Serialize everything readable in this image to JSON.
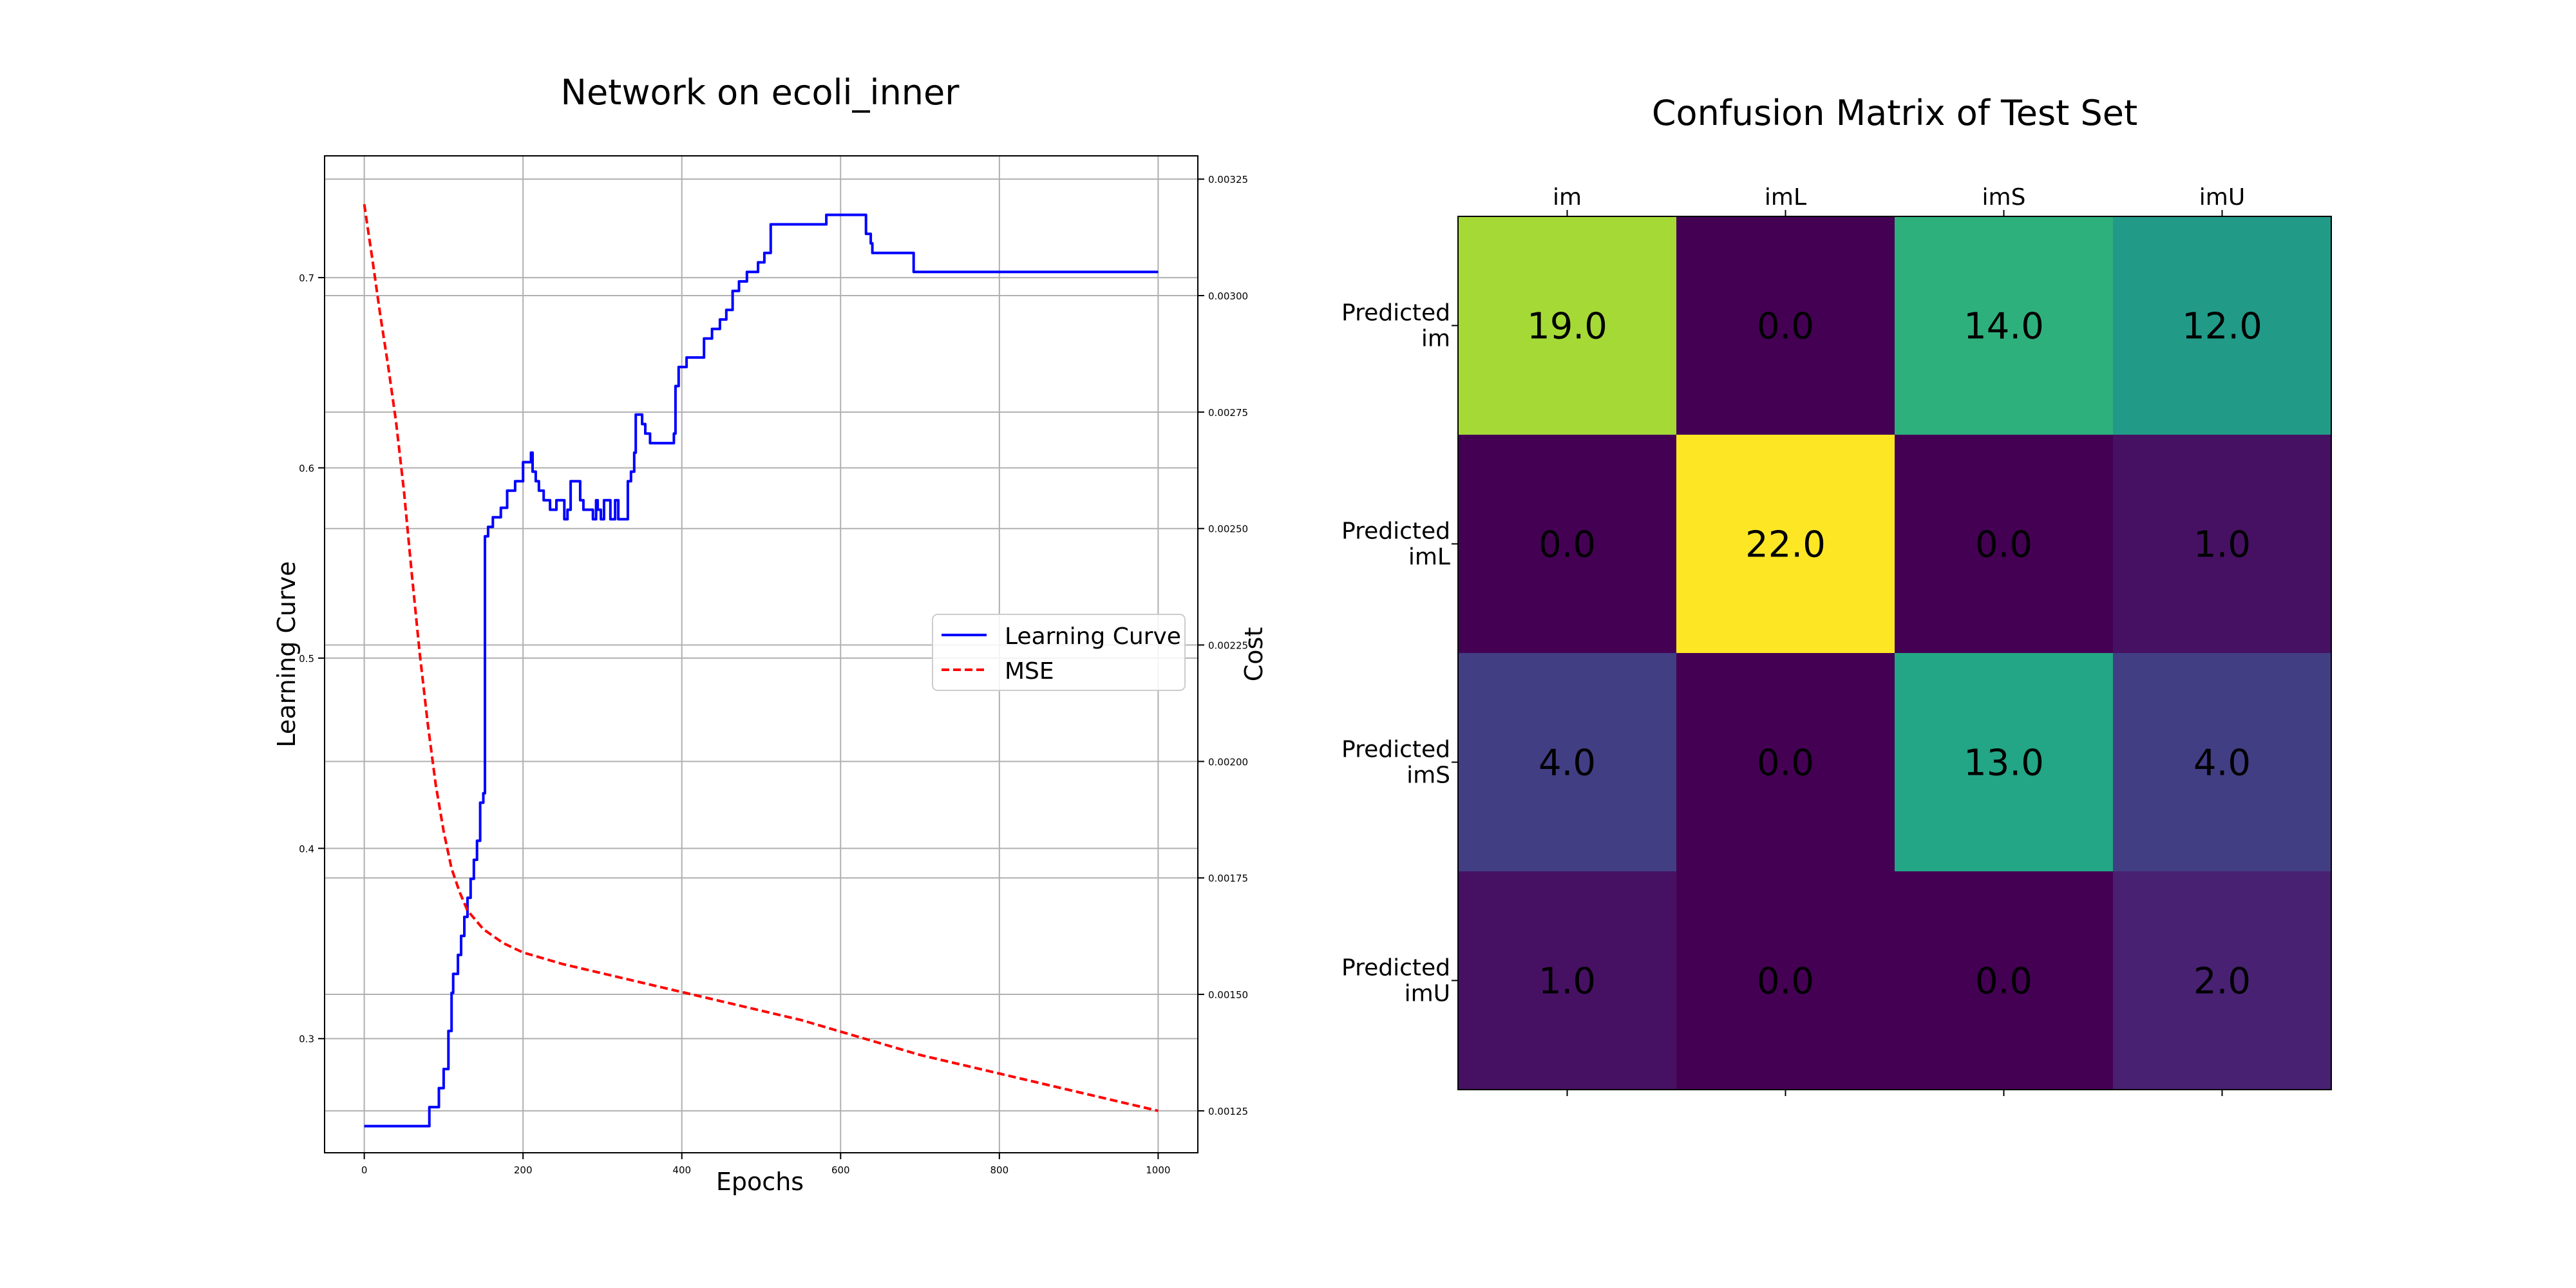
{
  "chart_data": [
    {
      "type": "line",
      "title": "Network on ecoli_inner",
      "xlabel": "Epochs",
      "ylabel": "Learning Curve",
      "y2label": "Cost",
      "xlim": [
        -50,
        1050
      ],
      "ylim": [
        0.24,
        0.764
      ],
      "y2lim": [
        0.00116,
        0.0033
      ],
      "xticks": [
        "0",
        "200",
        "400",
        "600",
        "800",
        "1000"
      ],
      "yticks": [
        "0.3",
        "0.4",
        "0.5",
        "0.6",
        "0.7"
      ],
      "y2ticks": [
        "0.00125",
        "0.00150",
        "0.00175",
        "0.00200",
        "0.00225",
        "0.00250",
        "0.00275",
        "0.00300",
        "0.00325"
      ],
      "grid": true,
      "legend_position": "center-right",
      "series": [
        {
          "name": "Learning Curve",
          "axis": "left",
          "color": "#0000ff",
          "style": "solid",
          "step": true,
          "points": [
            [
              0,
              0.254
            ],
            [
              80,
              0.254
            ],
            [
              82,
              0.264
            ],
            [
              92,
              0.264
            ],
            [
              94,
              0.274
            ],
            [
              98,
              0.274
            ],
            [
              100,
              0.284
            ],
            [
              104,
              0.284
            ],
            [
              106,
              0.304
            ],
            [
              110,
              0.324
            ],
            [
              112,
              0.334
            ],
            [
              116,
              0.334
            ],
            [
              118,
              0.344
            ],
            [
              122,
              0.354
            ],
            [
              126,
              0.364
            ],
            [
              130,
              0.374
            ],
            [
              134,
              0.384
            ],
            [
              138,
              0.394
            ],
            [
              142,
              0.404
            ],
            [
              146,
              0.424
            ],
            [
              150,
              0.429
            ],
            [
              152,
              0.564
            ],
            [
              156,
              0.569
            ],
            [
              160,
              0.569
            ],
            [
              162,
              0.574
            ],
            [
              170,
              0.574
            ],
            [
              172,
              0.579
            ],
            [
              178,
              0.579
            ],
            [
              180,
              0.588
            ],
            [
              188,
              0.588
            ],
            [
              190,
              0.593
            ],
            [
              198,
              0.593
            ],
            [
              200,
              0.603
            ],
            [
              208,
              0.603
            ],
            [
              210,
              0.608
            ],
            [
              212,
              0.598
            ],
            [
              216,
              0.593
            ],
            [
              220,
              0.588
            ],
            [
              226,
              0.583
            ],
            [
              232,
              0.583
            ],
            [
              234,
              0.578
            ],
            [
              240,
              0.578
            ],
            [
              242,
              0.583
            ],
            [
              250,
              0.583
            ],
            [
              252,
              0.573
            ],
            [
              256,
              0.578
            ],
            [
              260,
              0.593
            ],
            [
              270,
              0.593
            ],
            [
              272,
              0.583
            ],
            [
              276,
              0.578
            ],
            [
              284,
              0.578
            ],
            [
              288,
              0.573
            ],
            [
              292,
              0.583
            ],
            [
              294,
              0.578
            ],
            [
              298,
              0.573
            ],
            [
              302,
              0.583
            ],
            [
              306,
              0.583
            ],
            [
              310,
              0.573
            ],
            [
              316,
              0.583
            ],
            [
              320,
              0.573
            ],
            [
              328,
              0.573
            ],
            [
              332,
              0.593
            ],
            [
              336,
              0.598
            ],
            [
              340,
              0.608
            ],
            [
              342,
              0.628
            ],
            [
              346,
              0.628
            ],
            [
              350,
              0.623
            ],
            [
              354,
              0.618
            ],
            [
              358,
              0.618
            ],
            [
              360,
              0.613
            ],
            [
              386,
              0.613
            ],
            [
              390,
              0.618
            ],
            [
              392,
              0.643
            ],
            [
              396,
              0.653
            ],
            [
              404,
              0.653
            ],
            [
              406,
              0.658
            ],
            [
              426,
              0.658
            ],
            [
              428,
              0.668
            ],
            [
              436,
              0.668
            ],
            [
              438,
              0.673
            ],
            [
              446,
              0.673
            ],
            [
              448,
              0.678
            ],
            [
              454,
              0.678
            ],
            [
              456,
              0.683
            ],
            [
              462,
              0.683
            ],
            [
              464,
              0.693
            ],
            [
              470,
              0.693
            ],
            [
              472,
              0.698
            ],
            [
              480,
              0.698
            ],
            [
              482,
              0.703
            ],
            [
              494,
              0.703
            ],
            [
              496,
              0.708
            ],
            [
              502,
              0.708
            ],
            [
              504,
              0.713
            ],
            [
              510,
              0.713
            ],
            [
              512,
              0.728
            ],
            [
              580,
              0.728
            ],
            [
              582,
              0.733
            ],
            [
              630,
              0.733
            ],
            [
              632,
              0.723
            ],
            [
              638,
              0.718
            ],
            [
              640,
              0.713
            ],
            [
              690,
              0.713
            ],
            [
              692,
              0.703
            ],
            [
              1000,
              0.703
            ]
          ]
        },
        {
          "name": "MSE",
          "axis": "right",
          "color": "#ff0000",
          "style": "dashed",
          "points": [
            [
              0,
              0.003196
            ],
            [
              10,
              0.00308
            ],
            [
              20,
              0.00296
            ],
            [
              30,
              0.00285
            ],
            [
              40,
              0.00273
            ],
            [
              50,
              0.00258
            ],
            [
              60,
              0.0024
            ],
            [
              70,
              0.00223
            ],
            [
              80,
              0.00208
            ],
            [
              90,
              0.00195
            ],
            [
              100,
              0.00185
            ],
            [
              110,
              0.00177
            ],
            [
              120,
              0.00172
            ],
            [
              130,
              0.00168
            ],
            [
              140,
              0.00166
            ],
            [
              150,
              0.00164
            ],
            [
              175,
              0.00161
            ],
            [
              200,
              0.00159
            ],
            [
              250,
              0.001565
            ],
            [
              300,
              0.001545
            ],
            [
              350,
              0.001525
            ],
            [
              400,
              0.001505
            ],
            [
              450,
              0.001485
            ],
            [
              500,
              0.001465
            ],
            [
              550,
              0.001445
            ],
            [
              600,
              0.00142
            ],
            [
              650,
              0.001395
            ],
            [
              700,
              0.00137
            ],
            [
              750,
              0.00135
            ],
            [
              800,
              0.00133
            ],
            [
              850,
              0.00131
            ],
            [
              900,
              0.00129
            ],
            [
              950,
              0.00127
            ],
            [
              1000,
              0.00125
            ]
          ]
        }
      ]
    },
    {
      "type": "heatmap",
      "title": "Confusion Matrix of Test Set",
      "colormap": "viridis",
      "vmin": 0,
      "vmax": 22,
      "x_categories": [
        "im",
        "imL",
        "imS",
        "imU"
      ],
      "y_categories": [
        [
          "Predicted",
          "im"
        ],
        [
          "Predicted",
          "imL"
        ],
        [
          "Predicted",
          "imS"
        ],
        [
          "Predicted",
          "imU"
        ]
      ],
      "values": [
        [
          "19.0",
          "0.0",
          "14.0",
          "12.0"
        ],
        [
          "0.0",
          "22.0",
          "0.0",
          "1.0"
        ],
        [
          "4.0",
          "0.0",
          "13.0",
          "4.0"
        ],
        [
          "1.0",
          "0.0",
          "0.0",
          "2.0"
        ]
      ]
    }
  ]
}
